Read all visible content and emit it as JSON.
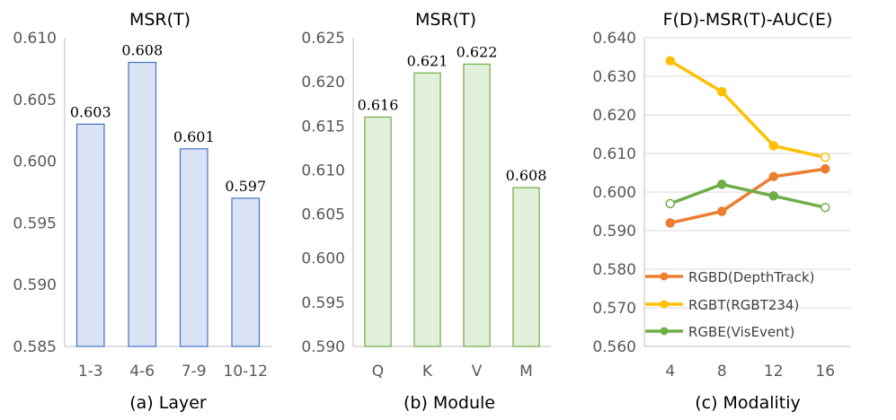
{
  "colors": {
    "bar_a_fill": "#dae3f3",
    "bar_a_stroke": "#4472c4",
    "bar_b_fill": "#e2efda",
    "bar_b_stroke": "#70ad47",
    "axis": "#bfbfbf",
    "grid": "#d9d9d9",
    "rgbd": "#ed7d31",
    "rgbt": "#ffc000",
    "rgbe": "#70ad47"
  },
  "chart_data": [
    {
      "type": "bar",
      "title": "MSR(T)",
      "caption": "(a) Layer",
      "categories": [
        "1-3",
        "4-6",
        "7-9",
        "10-12"
      ],
      "values": [
        0.603,
        0.608,
        0.601,
        0.597
      ],
      "labels": [
        "0.603",
        "0.608",
        "0.601",
        "0.597"
      ],
      "ylim": [
        0.585,
        0.61
      ],
      "yticks": [
        "0.585",
        "0.590",
        "0.595",
        "0.600",
        "0.605",
        "0.610"
      ],
      "ytick_values": [
        0.585,
        0.59,
        0.595,
        0.6,
        0.605,
        0.61
      ],
      "grid": false
    },
    {
      "type": "bar",
      "title": "MSR(T)",
      "caption": "(b) Module",
      "categories": [
        "Q",
        "K",
        "V",
        "M"
      ],
      "values": [
        0.616,
        0.621,
        0.622,
        0.608
      ],
      "labels": [
        "0.616",
        "0.621",
        "0.622",
        "0.608"
      ],
      "ylim": [
        0.59,
        0.625
      ],
      "yticks": [
        "0.590",
        "0.595",
        "0.600",
        "0.605",
        "0.610",
        "0.615",
        "0.620",
        "0.625"
      ],
      "ytick_values": [
        0.59,
        0.595,
        0.6,
        0.605,
        0.61,
        0.615,
        0.62,
        0.625
      ],
      "grid": false
    },
    {
      "type": "line",
      "title": "F(D)-MSR(T)-AUC(E)",
      "caption": "(c) Modalitiy",
      "categories": [
        "4",
        "8",
        "12",
        "16"
      ],
      "series": [
        {
          "name": "RGBD(DepthTrack)",
          "values": [
            0.592,
            0.595,
            0.604,
            0.606
          ]
        },
        {
          "name": "RGBT(RGBT234)",
          "values": [
            0.634,
            0.626,
            0.612,
            0.609
          ]
        },
        {
          "name": "RGBE(VisEvent)",
          "values": [
            0.597,
            0.602,
            0.599,
            0.596
          ]
        }
      ],
      "ylim": [
        0.56,
        0.64
      ],
      "yticks": [
        "0.560",
        "0.570",
        "0.580",
        "0.590",
        "0.600",
        "0.610",
        "0.620",
        "0.630",
        "0.640"
      ],
      "ytick_values": [
        0.56,
        0.57,
        0.58,
        0.59,
        0.6,
        0.61,
        0.62,
        0.63,
        0.64
      ],
      "grid": true,
      "legend": "bottom-left"
    }
  ]
}
